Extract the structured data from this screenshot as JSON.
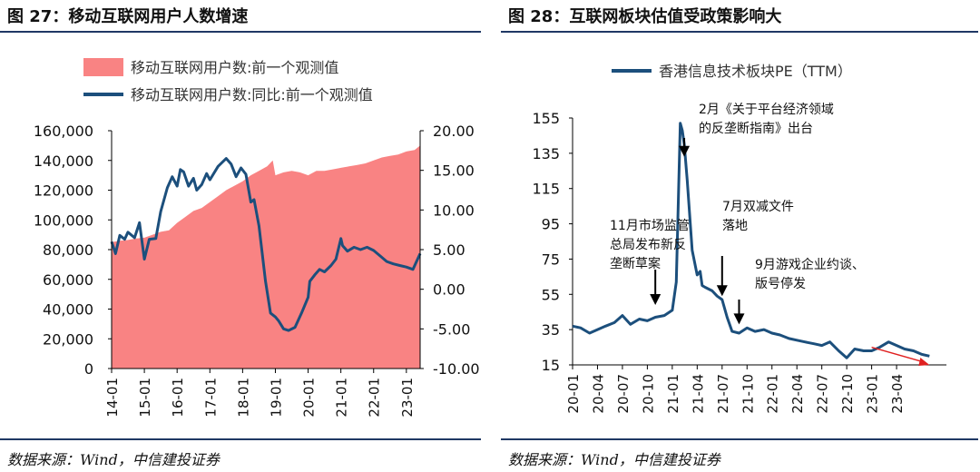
{
  "figures": [
    {
      "title": "图 27：移动互联网用户人数增速",
      "source": "数据来源：Wind，中信建投证券",
      "legend": [
        {
          "label": "移动互联网用户数:前一个观测值",
          "color": "#f98383",
          "kind": "area"
        },
        {
          "label": "移动互联网用户数:同比:前一个观测值",
          "color": "#1c4f7c",
          "kind": "line"
        }
      ],
      "y_left_ticks": [
        "160,000",
        "140,000",
        "120,000",
        "100,000",
        "80,000",
        "60,000",
        "40,000",
        "20,000",
        "0"
      ],
      "y_right_ticks": [
        "20.00",
        "15.00",
        "10.00",
        "5.00",
        "0.00",
        "-5.00",
        "-10.00"
      ],
      "x_ticks": [
        "14-01",
        "15-01",
        "16-01",
        "17-01",
        "18-01",
        "19-01",
        "20-01",
        "21-01",
        "22-01",
        "23-01"
      ]
    },
    {
      "title": "图 28：互联网板块估值受政策影响大",
      "source": "数据来源：Wind，中信建投证券",
      "legend": [
        {
          "label": "香港信息技术板块PE（TTM）",
          "color": "#1c4f7c",
          "kind": "line"
        }
      ],
      "y_ticks": [
        "155",
        "135",
        "115",
        "95",
        "75",
        "55",
        "35",
        "15"
      ],
      "x_ticks": [
        "20-01",
        "20-04",
        "20-07",
        "20-10",
        "21-01",
        "21-04",
        "21-07",
        "21-10",
        "22-01",
        "22-04",
        "22-07",
        "22-10",
        "23-01",
        "23-04"
      ],
      "annotations": [
        {
          "lines": [
            "2月《关于平台经济领域",
            "的反垄断指南》出台"
          ]
        },
        {
          "lines": [
            "11月市场监管",
            "总局发布新反",
            "垄断草案"
          ]
        },
        {
          "lines": [
            "7月双减文件",
            "落地"
          ]
        },
        {
          "lines": [
            "9月游戏企业约谈、",
            "版号停发"
          ]
        }
      ]
    }
  ],
  "chart_data": [
    {
      "type": "area",
      "title": "图 27：移动互联网用户人数增速",
      "x_range": [
        "2014-01",
        "2023-06"
      ],
      "ylim_left": [
        0,
        160000
      ],
      "ylim_right": [
        -10,
        20
      ],
      "grid": false,
      "series": [
        {
          "name": "移动互联网用户数:前一个观测值",
          "axis": "left",
          "type": "area",
          "color": "#f98383",
          "x": [
            2014.0,
            2014.25,
            2014.5,
            2014.75,
            2015.0,
            2015.25,
            2015.5,
            2015.75,
            2016.0,
            2016.25,
            2016.5,
            2016.75,
            2017.0,
            2017.25,
            2017.5,
            2017.75,
            2018.0,
            2018.25,
            2018.5,
            2018.75,
            2018.92,
            2019.0,
            2019.25,
            2019.5,
            2019.75,
            2020.0,
            2020.25,
            2020.5,
            2020.75,
            2021.0,
            2021.25,
            2021.5,
            2021.75,
            2022.0,
            2022.25,
            2022.5,
            2022.75,
            2023.0,
            2023.25,
            2023.42
          ],
          "values": [
            85000,
            86000,
            86500,
            87500,
            88000,
            90000,
            92000,
            93000,
            98000,
            102000,
            106000,
            108000,
            112000,
            116000,
            120000,
            123000,
            126000,
            130000,
            133000,
            136000,
            140000,
            130000,
            132000,
            133000,
            132000,
            130000,
            133000,
            133000,
            134000,
            135000,
            136000,
            137000,
            138000,
            140000,
            142000,
            143000,
            144000,
            146000,
            147000,
            150000
          ]
        },
        {
          "name": "移动互联网用户数:同比:前一个观测值",
          "axis": "right",
          "type": "line",
          "color": "#1c4f7c",
          "x": [
            2014.0,
            2014.12,
            2014.25,
            2014.4,
            2014.5,
            2014.7,
            2014.85,
            2015.0,
            2015.15,
            2015.35,
            2015.5,
            2015.7,
            2015.85,
            2016.0,
            2016.1,
            2016.2,
            2016.35,
            2016.5,
            2016.6,
            2016.75,
            2016.9,
            2017.0,
            2017.25,
            2017.5,
            2017.65,
            2017.8,
            2017.95,
            2018.1,
            2018.25,
            2018.35,
            2018.5,
            2018.7,
            2018.85,
            2019.0,
            2019.1,
            2019.25,
            2019.4,
            2019.6,
            2019.8,
            2020.0,
            2020.05,
            2020.2,
            2020.35,
            2020.5,
            2020.7,
            2020.85,
            2021.0,
            2021.05,
            2021.2,
            2021.4,
            2021.6,
            2021.8,
            2022.0,
            2022.2,
            2022.4,
            2022.6,
            2022.8,
            2023.0,
            2023.2,
            2023.42
          ],
          "values": [
            6.0,
            4.5,
            6.8,
            6.3,
            7.2,
            6.5,
            8.4,
            3.8,
            6.3,
            6.4,
            9.8,
            12.8,
            14.2,
            13.0,
            15.1,
            14.8,
            13.0,
            14.0,
            12.5,
            13.2,
            14.6,
            13.8,
            15.5,
            16.5,
            15.8,
            14.2,
            15.3,
            14.5,
            11.0,
            11.3,
            8.0,
            1.0,
            -3.0,
            -3.5,
            -4.0,
            -5.0,
            -5.2,
            -4.8,
            -3.0,
            -1.0,
            1.0,
            1.8,
            2.5,
            2.2,
            3.0,
            3.8,
            6.4,
            5.5,
            4.8,
            5.3,
            5.0,
            5.3,
            4.9,
            4.2,
            3.5,
            3.2,
            3.0,
            2.8,
            2.5,
            4.5
          ]
        }
      ]
    },
    {
      "type": "line",
      "title": "图 28：互联网板块估值受政策影响大",
      "x_range": [
        "2020-01",
        "2023-08"
      ],
      "ylim": [
        15,
        155
      ],
      "grid": false,
      "series": [
        {
          "name": "香港信息技术板块PE（TTM）",
          "color": "#1c4f7c",
          "x": [
            2020.0,
            2020.08,
            2020.17,
            2020.25,
            2020.33,
            2020.42,
            2020.5,
            2020.58,
            2020.67,
            2020.75,
            2020.83,
            2020.92,
            2021.0,
            2021.04,
            2021.08,
            2021.1,
            2021.12,
            2021.15,
            2021.2,
            2021.25,
            2021.28,
            2021.3,
            2021.33,
            2021.4,
            2021.45,
            2021.5,
            2021.55,
            2021.6,
            2021.67,
            2021.75,
            2021.83,
            2021.92,
            2022.0,
            2022.08,
            2022.17,
            2022.25,
            2022.33,
            2022.42,
            2022.5,
            2022.58,
            2022.67,
            2022.75,
            2022.83,
            2022.92,
            2023.0,
            2023.08,
            2023.17,
            2023.25,
            2023.33,
            2023.42,
            2023.5,
            2023.58
          ],
          "values": [
            37,
            36,
            33,
            35,
            37,
            39,
            43,
            38,
            41,
            40,
            42,
            43,
            46,
            62,
            152,
            148,
            140,
            120,
            80,
            66,
            68,
            60,
            59,
            57,
            54,
            52,
            42,
            34,
            33,
            36,
            34,
            35,
            33,
            32,
            30,
            29,
            28,
            27,
            26,
            28,
            23,
            19,
            24,
            23,
            23,
            25,
            28,
            26,
            24,
            23,
            21,
            20
          ]
        }
      ],
      "trend_arrow": {
        "from": [
          2023.0,
          25
        ],
        "to": [
          2023.58,
          15
        ],
        "color": "#e02020"
      },
      "annotation_targets": [
        {
          "text_index": 0,
          "x": 2021.12,
          "y": 133
        },
        {
          "text_index": 1,
          "x": 2020.83,
          "y": 49
        },
        {
          "text_index": 2,
          "x": 2021.5,
          "y": 54
        },
        {
          "text_index": 3,
          "x": 2021.67,
          "y": 38
        }
      ]
    }
  ]
}
